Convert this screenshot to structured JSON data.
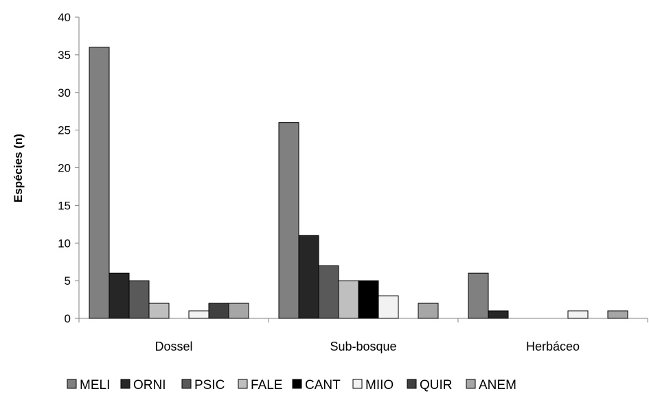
{
  "chart_data": {
    "type": "bar",
    "title": "",
    "xlabel": "",
    "ylabel": "Espécies (n)",
    "ylim": [
      0,
      40
    ],
    "yticks": [
      0,
      5,
      10,
      15,
      20,
      25,
      30,
      35,
      40
    ],
    "grid": false,
    "legend_position": "bottom",
    "categories": [
      "Dossel",
      "Sub-bosque",
      "Herbáceo"
    ],
    "series": [
      {
        "name": "MELI",
        "color": "#808080",
        "values": [
          36,
          26,
          6
        ]
      },
      {
        "name": "ORNI",
        "color": "#262626",
        "values": [
          6,
          11,
          1
        ]
      },
      {
        "name": "PSIC",
        "color": "#595959",
        "values": [
          5,
          7,
          0
        ]
      },
      {
        "name": "FALE",
        "color": "#bfbfbf",
        "values": [
          2,
          5,
          0
        ]
      },
      {
        "name": "CANT",
        "color": "#000000",
        "values": [
          0,
          5,
          0
        ]
      },
      {
        "name": "MIIO",
        "color": "#f2f2f2",
        "values": [
          1,
          3,
          1
        ]
      },
      {
        "name": "QUIR",
        "color": "#404040",
        "values": [
          2,
          0,
          0
        ]
      },
      {
        "name": "ANEM",
        "color": "#a6a6a6",
        "values": [
          2,
          2,
          1
        ]
      }
    ]
  }
}
